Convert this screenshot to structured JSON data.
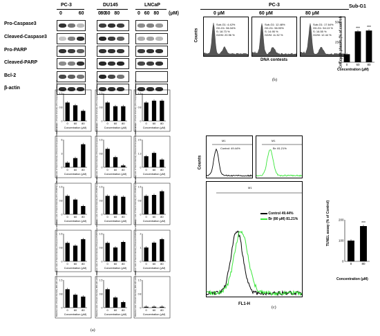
{
  "figure": {
    "western": {
      "cell_lines": [
        "PC-3",
        "DU145",
        "LNCaP"
      ],
      "concentrations": [
        "0",
        "60",
        "80"
      ],
      "unit": "(μM)",
      "proteins": [
        "Pro-Caspase3",
        "Cleaved-Caspase3",
        "Pro-PARP",
        "Cleaved-PARP",
        "Bcl-2",
        "β-actin"
      ]
    },
    "bar_grid": {
      "xlabel": "Concentration (μM)",
      "categories": [
        "0",
        "60",
        "80"
      ],
      "ylabels": [
        "Relative ratio of band intensity (Pro-Caspase3/β-actin ratio)",
        "Relative ratio of band intensity (Cleaved-Caspase3/β-actin ratio)",
        "Relative ratio of band intensity (Pro-PARP/β-actin ratio)",
        "Relative ratio of band intensity (Cleaved-PARP/β-actin ratio)",
        "Relative ratio of band intensity (Bcl-2/β-actin ratio)"
      ]
    },
    "cellcycle": {
      "title": "PC-3",
      "ylabel": "Counts",
      "xlabel": "DNA contests",
      "panels": [
        {
          "conc": "0 μM",
          "stats": [
            "Sub-G1: 4.42%",
            "G0-G1: 56.34%",
            "S: 18.73 %",
            "G2/M: 20.96 %"
          ]
        },
        {
          "conc": "60 μM",
          "stats": [
            "Sub-G1: 12.48%",
            "G0-G1: 56.93%",
            "S: 14.95 %",
            "G2/M: 11.32 %"
          ]
        },
        {
          "conc": "80 μM",
          "stats": [
            "Sub-G1: 17.64%",
            "G0-G1: 54.13 %",
            "S: 16.55 %",
            "G2/M: 12.44 %"
          ]
        }
      ]
    },
    "subg1": {
      "title": "Sub-G1",
      "ylabel": "Cell cycle phases (% of control)",
      "xlabel": "Concentration (μM)",
      "stars": "***"
    },
    "tunel": {
      "ylabel": "Counts",
      "xlabel": "FL1-H",
      "gate": "M1",
      "control_text": "Control: 49.44%",
      "br_text": "Br: 81.21%",
      "legend": [
        "Control 49.44%",
        "Br (80 μM) 81.21%"
      ],
      "bar_ylabel": "TUNEL assay (% of Control)",
      "bar_xlabel": "Concentration (μM)",
      "stars": "***",
      "colors": {
        "control": "#000000",
        "br": "#39e639"
      }
    },
    "captions": {
      "a": "(a)",
      "b": "(b)",
      "c": "(c)"
    }
  },
  "chart_data": [
    {
      "type": "bar",
      "id": "a-r1-pc3",
      "categories": [
        "0",
        "60",
        "80"
      ],
      "values": [
        1.0,
        0.85,
        0.55
      ],
      "ylim": [
        0,
        1.5
      ]
    },
    {
      "type": "bar",
      "id": "a-r1-du145",
      "categories": [
        "0",
        "60",
        "80"
      ],
      "values": [
        1.0,
        0.8,
        0.8
      ],
      "ylim": [
        0,
        1.5
      ]
    },
    {
      "type": "bar",
      "id": "a-r1-lncap",
      "categories": [
        "0",
        "60",
        "80"
      ],
      "values": [
        1.0,
        1.1,
        1.1
      ],
      "ylim": [
        0,
        1.5
      ]
    },
    {
      "type": "bar",
      "id": "a-r2-pc3",
      "categories": [
        "0",
        "60",
        "80"
      ],
      "values": [
        1.0,
        2.0,
        5.0
      ],
      "ylim": [
        0,
        6
      ]
    },
    {
      "type": "bar",
      "id": "a-r2-du145",
      "categories": [
        "0",
        "60",
        "80"
      ],
      "values": [
        1.0,
        0.55,
        0.1
      ],
      "ylim": [
        0,
        1.5
      ]
    },
    {
      "type": "bar",
      "id": "a-r2-lncap",
      "categories": [
        "0",
        "60",
        "80"
      ],
      "values": [
        1.0,
        1.3,
        0.7
      ],
      "ylim": [
        0,
        2.5
      ]
    },
    {
      "type": "bar",
      "id": "a-r3-pc3",
      "categories": [
        "0",
        "60",
        "80"
      ],
      "values": [
        1.0,
        0.8,
        0.45
      ],
      "ylim": [
        0,
        1.5
      ]
    },
    {
      "type": "bar",
      "id": "a-r3-du145",
      "categories": [
        "0",
        "60",
        "80"
      ],
      "values": [
        1.0,
        1.0,
        0.95
      ],
      "ylim": [
        0,
        1.5
      ]
    },
    {
      "type": "bar",
      "id": "a-r3-lncap",
      "categories": [
        "0",
        "60",
        "80"
      ],
      "values": [
        1.0,
        1.05,
        1.25
      ],
      "ylim": [
        0,
        1.5
      ]
    },
    {
      "type": "bar",
      "id": "a-r4-pc3",
      "categories": [
        "0",
        "60",
        "80"
      ],
      "values": [
        1.0,
        0.85,
        1.2
      ],
      "ylim": [
        0,
        1.5
      ]
    },
    {
      "type": "bar",
      "id": "a-r4-du145",
      "categories": [
        "0",
        "60",
        "80"
      ],
      "values": [
        1.0,
        0.75,
        1.05
      ],
      "ylim": [
        0,
        1.5
      ]
    },
    {
      "type": "bar",
      "id": "a-r4-lncap",
      "categories": [
        "0",
        "60",
        "80"
      ],
      "values": [
        1.0,
        1.35,
        1.6
      ],
      "ylim": [
        0,
        2.0
      ]
    },
    {
      "type": "bar",
      "id": "a-r5-pc3",
      "categories": [
        "0",
        "60",
        "80"
      ],
      "values": [
        1.0,
        0.7,
        0.6
      ],
      "ylim": [
        0,
        1.5
      ]
    },
    {
      "type": "bar",
      "id": "a-r5-du145",
      "categories": [
        "0",
        "60",
        "80"
      ],
      "values": [
        1.0,
        0.55,
        0.3
      ],
      "ylim": [
        0,
        1.5
      ]
    },
    {
      "type": "bar",
      "id": "a-r5-lncap",
      "categories": [
        "0",
        "60",
        "80"
      ],
      "values": [
        0.05,
        0.05,
        0.05
      ],
      "ylim": [
        0,
        1.5
      ]
    },
    {
      "type": "bar",
      "id": "subg1",
      "categories": [
        "0",
        "60",
        "80"
      ],
      "values": [
        100,
        385,
        395
      ],
      "ylim": [
        0,
        500
      ]
    },
    {
      "type": "bar",
      "id": "tunel",
      "categories": [
        "0",
        "80"
      ],
      "values": [
        100,
        170
      ],
      "ylim": [
        0,
        200
      ]
    }
  ]
}
